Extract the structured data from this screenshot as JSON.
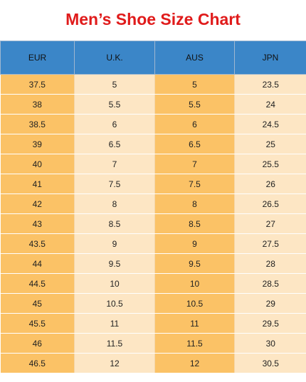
{
  "title": "Men’s Shoe Size Chart",
  "colors": {
    "title": "#e01b1b",
    "header_bg": "#3b86c8",
    "column_orange": "#fbc266",
    "column_cream": "#fde6c4"
  },
  "table": {
    "headers": [
      "EUR",
      "U.K.",
      "AUS",
      "JPN"
    ],
    "rows": [
      [
        "37.5",
        "5",
        "5",
        "23.5"
      ],
      [
        "38",
        "5.5",
        "5.5",
        "24"
      ],
      [
        "38.5",
        "6",
        "6",
        "24.5"
      ],
      [
        "39",
        "6.5",
        "6.5",
        "25"
      ],
      [
        "40",
        "7",
        "7",
        "25.5"
      ],
      [
        "41",
        "7.5",
        "7.5",
        "26"
      ],
      [
        "42",
        "8",
        "8",
        "26.5"
      ],
      [
        "43",
        "8.5",
        "8.5",
        "27"
      ],
      [
        "43.5",
        "9",
        "9",
        "27.5"
      ],
      [
        "44",
        "9.5",
        "9.5",
        "28"
      ],
      [
        "44.5",
        "10",
        "10",
        "28.5"
      ],
      [
        "45",
        "10.5",
        "10.5",
        "29"
      ],
      [
        "45.5",
        "11",
        "11",
        "29.5"
      ],
      [
        "46",
        "11.5",
        "11.5",
        "30"
      ],
      [
        "46.5",
        "12",
        "12",
        "30.5"
      ]
    ]
  }
}
